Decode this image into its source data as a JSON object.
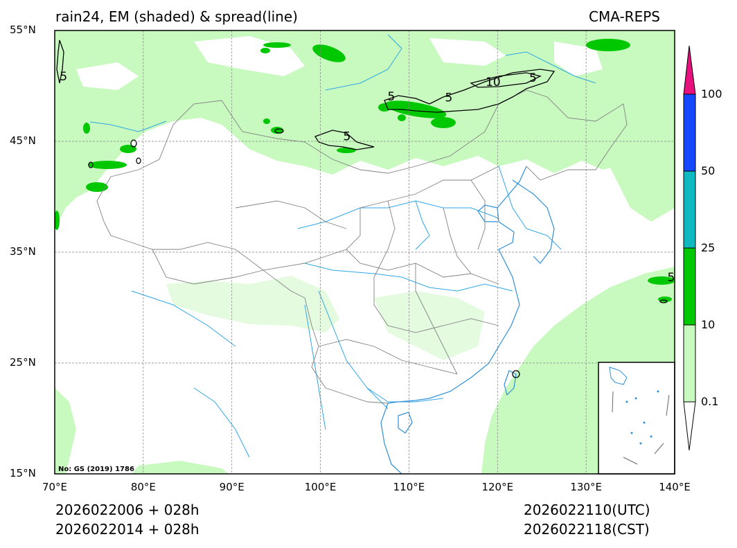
{
  "title": {
    "left": "rain24, EM (shaded) & spread(line)",
    "right": "CMA-REPS"
  },
  "footer": {
    "init_utc": "2026022006  +  028h",
    "init_cst": "2026022014  +  028h",
    "valid_utc": "2026022110(UTC)",
    "valid_cst": "2026022118(CST)"
  },
  "map": {
    "lon_range": [
      70,
      140
    ],
    "lat_range": [
      15,
      55
    ],
    "lat_ticks": [
      55,
      45,
      35,
      25,
      15
    ],
    "lat_labels": [
      "55°N",
      "45°N",
      "35°N",
      "25°N",
      "15°N"
    ],
    "lon_ticks": [
      70,
      80,
      90,
      100,
      110,
      120,
      130,
      140
    ],
    "lon_labels": [
      "70°E",
      "80°E",
      "90°E",
      "100°E",
      "110°E",
      "120°E",
      "130°E",
      "140°E"
    ],
    "approval_no": "No: GS (2019) 1786",
    "contour_labels": [
      {
        "text": "5",
        "lon": 71.0,
        "lat": 50.8
      },
      {
        "text": "5",
        "lon": 108.0,
        "lat": 49.0
      },
      {
        "text": "5",
        "lon": 114.5,
        "lat": 48.9
      },
      {
        "text": "10",
        "lon": 119.5,
        "lat": 50.3
      },
      {
        "text": "5",
        "lon": 124.0,
        "lat": 50.7
      },
      {
        "text": "5",
        "lon": 103.0,
        "lat": 45.4
      },
      {
        "text": "5",
        "lon": 139.6,
        "lat": 32.7
      }
    ]
  },
  "colorbar": {
    "levels": [
      "0.1",
      "10",
      "25",
      "50",
      "100"
    ],
    "colors": {
      "under": "#ffffff",
      "0.1-10": "#c8fac0",
      "10-25": "#00c800",
      "25-50": "#10b8c0",
      "50-100": "#1648ff",
      "over": "#e6107f"
    }
  },
  "colors": {
    "light_green": "#c8fac0",
    "green": "#00c800",
    "river": "#2ea6e6",
    "border": "#808080",
    "grid": "#808080"
  }
}
